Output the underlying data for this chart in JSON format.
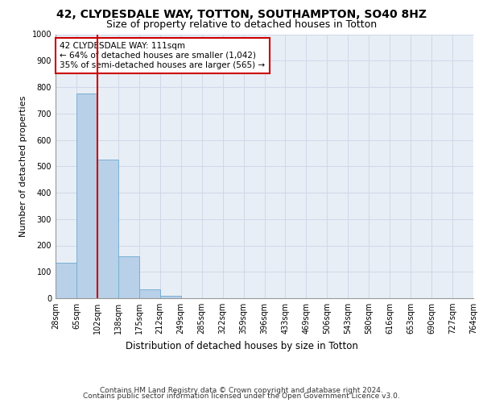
{
  "title1": "42, CLYDESDALE WAY, TOTTON, SOUTHAMPTON, SO40 8HZ",
  "title2": "Size of property relative to detached houses in Totton",
  "xlabel": "Distribution of detached houses by size in Totton",
  "ylabel": "Number of detached properties",
  "bar_values": [
    135,
    775,
    525,
    160,
    35,
    10,
    0,
    0,
    0,
    0,
    0,
    0,
    0,
    0,
    0,
    0,
    0,
    0,
    0,
    0
  ],
  "bin_labels": [
    "28sqm",
    "65sqm",
    "102sqm",
    "138sqm",
    "175sqm",
    "212sqm",
    "249sqm",
    "285sqm",
    "322sqm",
    "359sqm",
    "396sqm",
    "433sqm",
    "469sqm",
    "506sqm",
    "543sqm",
    "580sqm",
    "616sqm",
    "653sqm",
    "690sqm",
    "727sqm",
    "764sqm"
  ],
  "bar_color": "#b8d0e8",
  "bar_edge_color": "#7aafd4",
  "grid_color": "#d0d8e8",
  "bg_color": "#e8eef6",
  "vline_color": "#cc0000",
  "annotation_text": "42 CLYDESDALE WAY: 111sqm\n← 64% of detached houses are smaller (1,042)\n35% of semi-detached houses are larger (565) →",
  "annotation_box_color": "#cc0000",
  "footer1": "Contains HM Land Registry data © Crown copyright and database right 2024.",
  "footer2": "Contains public sector information licensed under the Open Government Licence v3.0.",
  "ylim": [
    0,
    1000
  ],
  "yticks": [
    0,
    100,
    200,
    300,
    400,
    500,
    600,
    700,
    800,
    900,
    1000
  ],
  "title1_fontsize": 10,
  "title2_fontsize": 9,
  "xlabel_fontsize": 8.5,
  "ylabel_fontsize": 8,
  "tick_fontsize": 7,
  "annotation_fontsize": 7.5,
  "footer_fontsize": 6.5,
  "vline_bar_index": 2
}
